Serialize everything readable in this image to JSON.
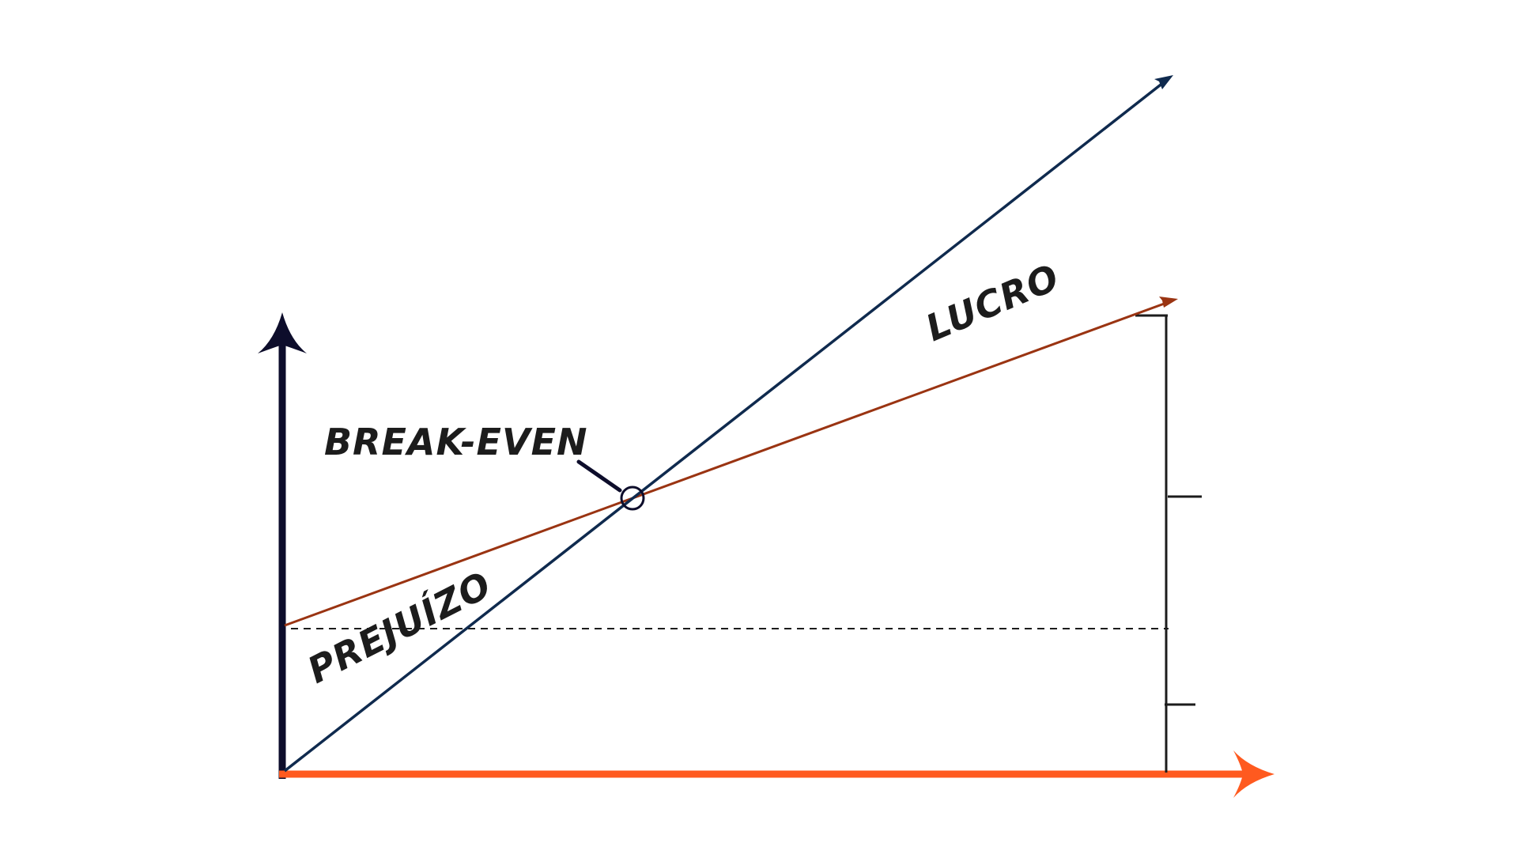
{
  "labels": {
    "break_even": "BREAK-EVEN",
    "profit": "LUCRO",
    "loss": "PREJUÍZO"
  },
  "colors": {
    "background": "#ffffff",
    "y_axis": "#0d0d2b",
    "x_axis": "#ff5a1f",
    "revenue_line": "#0f2a4e",
    "cost_line": "#9a3412",
    "fixed_cost_dashed": "#1c1c1c",
    "bracket": "#1c1c1c",
    "label_text": "#1c1c1c"
  }
}
